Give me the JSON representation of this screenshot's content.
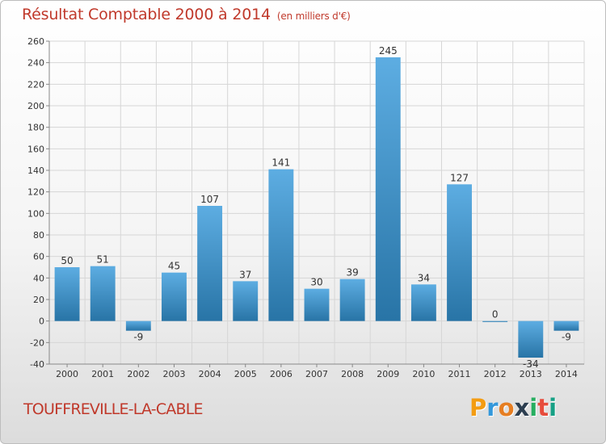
{
  "title": "Résultat Comptable 2000 à 2014",
  "unit_note": "(en milliers d'€)",
  "town": "TOUFFREVILLE-LA-CABLE",
  "logo": {
    "letters": [
      "P",
      "r",
      "o",
      "x",
      "i",
      "t",
      "i"
    ],
    "colors": [
      "#f39c12",
      "#3498db",
      "#e67e22",
      "#2c3e50",
      "#27ae60",
      "#e74c3c",
      "#16a085"
    ]
  },
  "colors": {
    "title": "#c0392b",
    "bar_light": "#5dade2",
    "bar_dark": "#2874a6",
    "grid": "#d6d6d6",
    "axis_text": "#333333"
  },
  "chart_data": {
    "type": "bar",
    "categories": [
      "2000",
      "2001",
      "2002",
      "2003",
      "2004",
      "2005",
      "2006",
      "2007",
      "2008",
      "2009",
      "2010",
      "2011",
      "2012",
      "2013",
      "2014"
    ],
    "values": [
      50,
      51,
      -9,
      45,
      107,
      37,
      141,
      30,
      39,
      245,
      34,
      127,
      0,
      -34,
      -9
    ],
    "ylim": [
      -40,
      260
    ],
    "yticks": [
      -40,
      -20,
      0,
      20,
      40,
      60,
      80,
      100,
      120,
      140,
      160,
      180,
      200,
      220,
      240,
      260
    ],
    "grid": true,
    "data_labels": true
  }
}
